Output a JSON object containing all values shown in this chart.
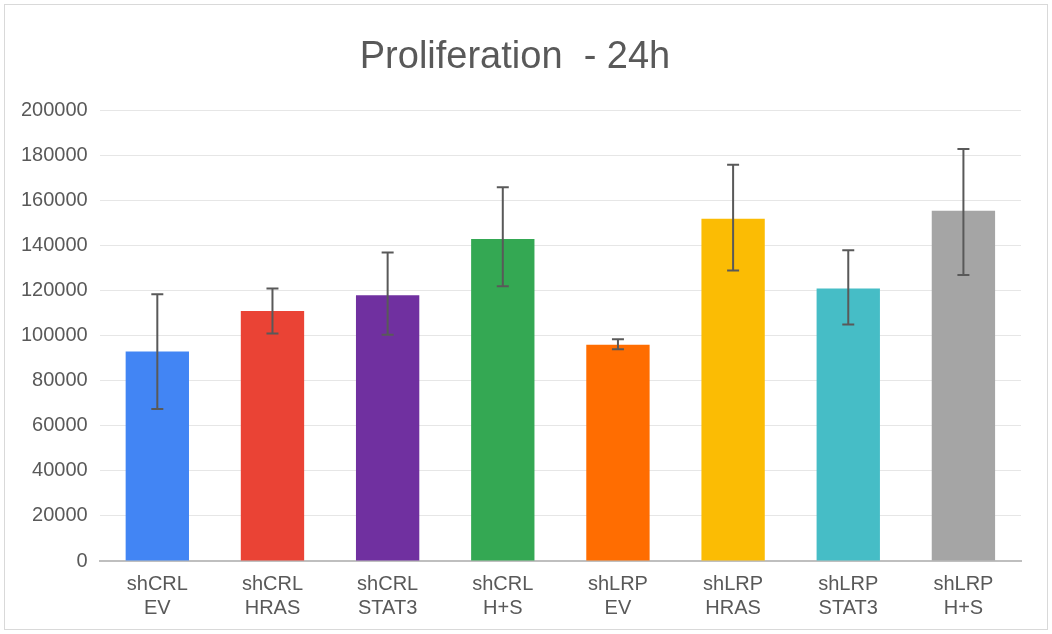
{
  "chart_data": {
    "type": "bar",
    "title": "Proliferation  - 24h",
    "categories": [
      "shCRL\nEV",
      "shCRL\nHRAS",
      "shCRL\nSTAT3",
      "shCRL\nH+S",
      "shLRP\nEV",
      "shLRP\nHRAS",
      "shLRP\nSTAT3",
      "shLRP\nH+S"
    ],
    "values": [
      93000,
      111000,
      118000,
      143000,
      96000,
      152000,
      121000,
      155500
    ],
    "colors": [
      "#4285f4",
      "#ea4335",
      "#7030a0",
      "#34a853",
      "#ff6d01",
      "#fbbc04",
      "#46bdc6",
      "#a5a5a5"
    ],
    "errors": [
      [
        67500,
        118500
      ],
      [
        101000,
        121000
      ],
      [
        100500,
        137000
      ],
      [
        122000,
        166000
      ],
      [
        94000,
        98500
      ],
      [
        129000,
        176000
      ],
      [
        105000,
        138000
      ],
      [
        127000,
        183000
      ]
    ],
    "ylim": [
      0,
      200000
    ],
    "yticks": [
      0,
      20000,
      40000,
      60000,
      80000,
      100000,
      120000,
      140000,
      160000,
      180000,
      200000
    ],
    "grid": "y",
    "legend": false
  }
}
